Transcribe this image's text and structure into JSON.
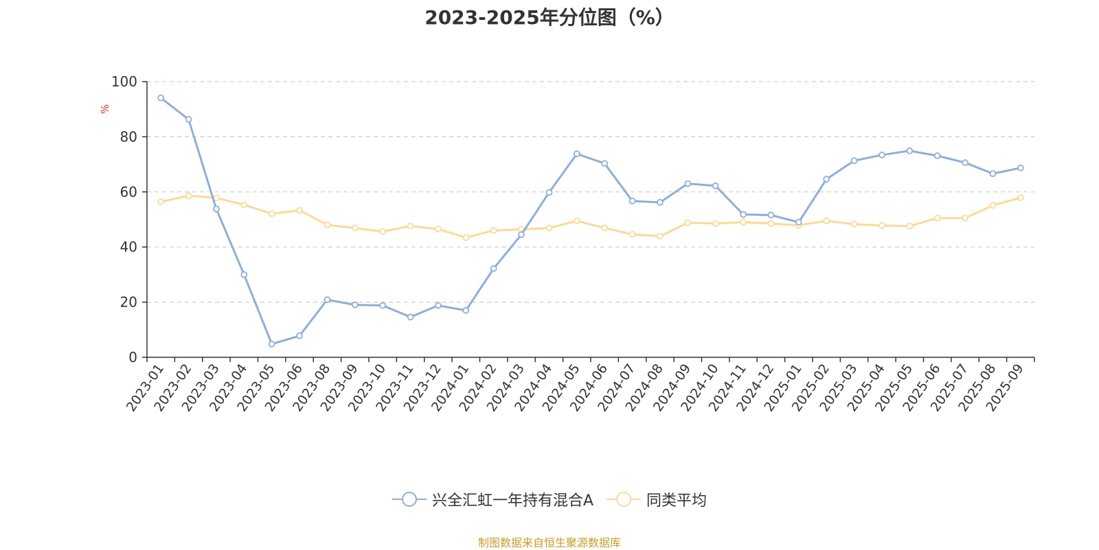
{
  "chart_data": {
    "type": "line",
    "title": "2023-2025年分位图（%）",
    "ylabel": "%",
    "ylim": [
      0,
      100
    ],
    "yticks": [
      0,
      20,
      40,
      60,
      80,
      100
    ],
    "grid": true,
    "legend_position": "bottom",
    "categories": [
      "2023-01",
      "2023-02",
      "2023-03",
      "2023-04",
      "2023-05",
      "2023-06",
      "2023-08",
      "2023-09",
      "2023-10",
      "2023-11",
      "2023-12",
      "2024-01",
      "2024-02",
      "2024-03",
      "2024-04",
      "2024-05",
      "2024-06",
      "2024-07",
      "2024-08",
      "2024-09",
      "2024-10",
      "2024-11",
      "2024-12",
      "2025-01",
      "2025-02",
      "2025-03",
      "2025-04",
      "2025-05",
      "2025-06",
      "2025-07",
      "2025-08",
      "2025-09"
    ],
    "series": [
      {
        "name": "兴全汇虹一年持有混合A",
        "color": "#8eaed8",
        "values": [
          94.1,
          86.3,
          53.8,
          30.0,
          4.8,
          7.8,
          20.9,
          19.0,
          18.8,
          14.6,
          18.8,
          17.0,
          32.2,
          44.5,
          59.8,
          73.8,
          70.3,
          56.7,
          56.2,
          63.0,
          62.2,
          51.8,
          51.6,
          49.0,
          64.6,
          71.3,
          73.4,
          74.9,
          73.1,
          70.6,
          66.6,
          68.7
        ]
      },
      {
        "name": "同类平均",
        "color": "#fbd999",
        "values": [
          56.4,
          58.6,
          57.8,
          55.3,
          52.1,
          53.3,
          48.0,
          46.9,
          45.6,
          47.6,
          46.5,
          43.4,
          46.0,
          46.4,
          46.9,
          49.5,
          46.9,
          44.6,
          43.9,
          48.8,
          48.5,
          49.0,
          48.5,
          47.9,
          49.5,
          48.3,
          47.8,
          47.6,
          50.5,
          50.5,
          55.1,
          57.9
        ]
      }
    ]
  },
  "colors": {
    "ylabel": "#e8261d",
    "source": "#c89b2c",
    "axis": "#333333",
    "grid": "#cccccc"
  },
  "source_text": "制图数据来自恒生聚源数据库"
}
